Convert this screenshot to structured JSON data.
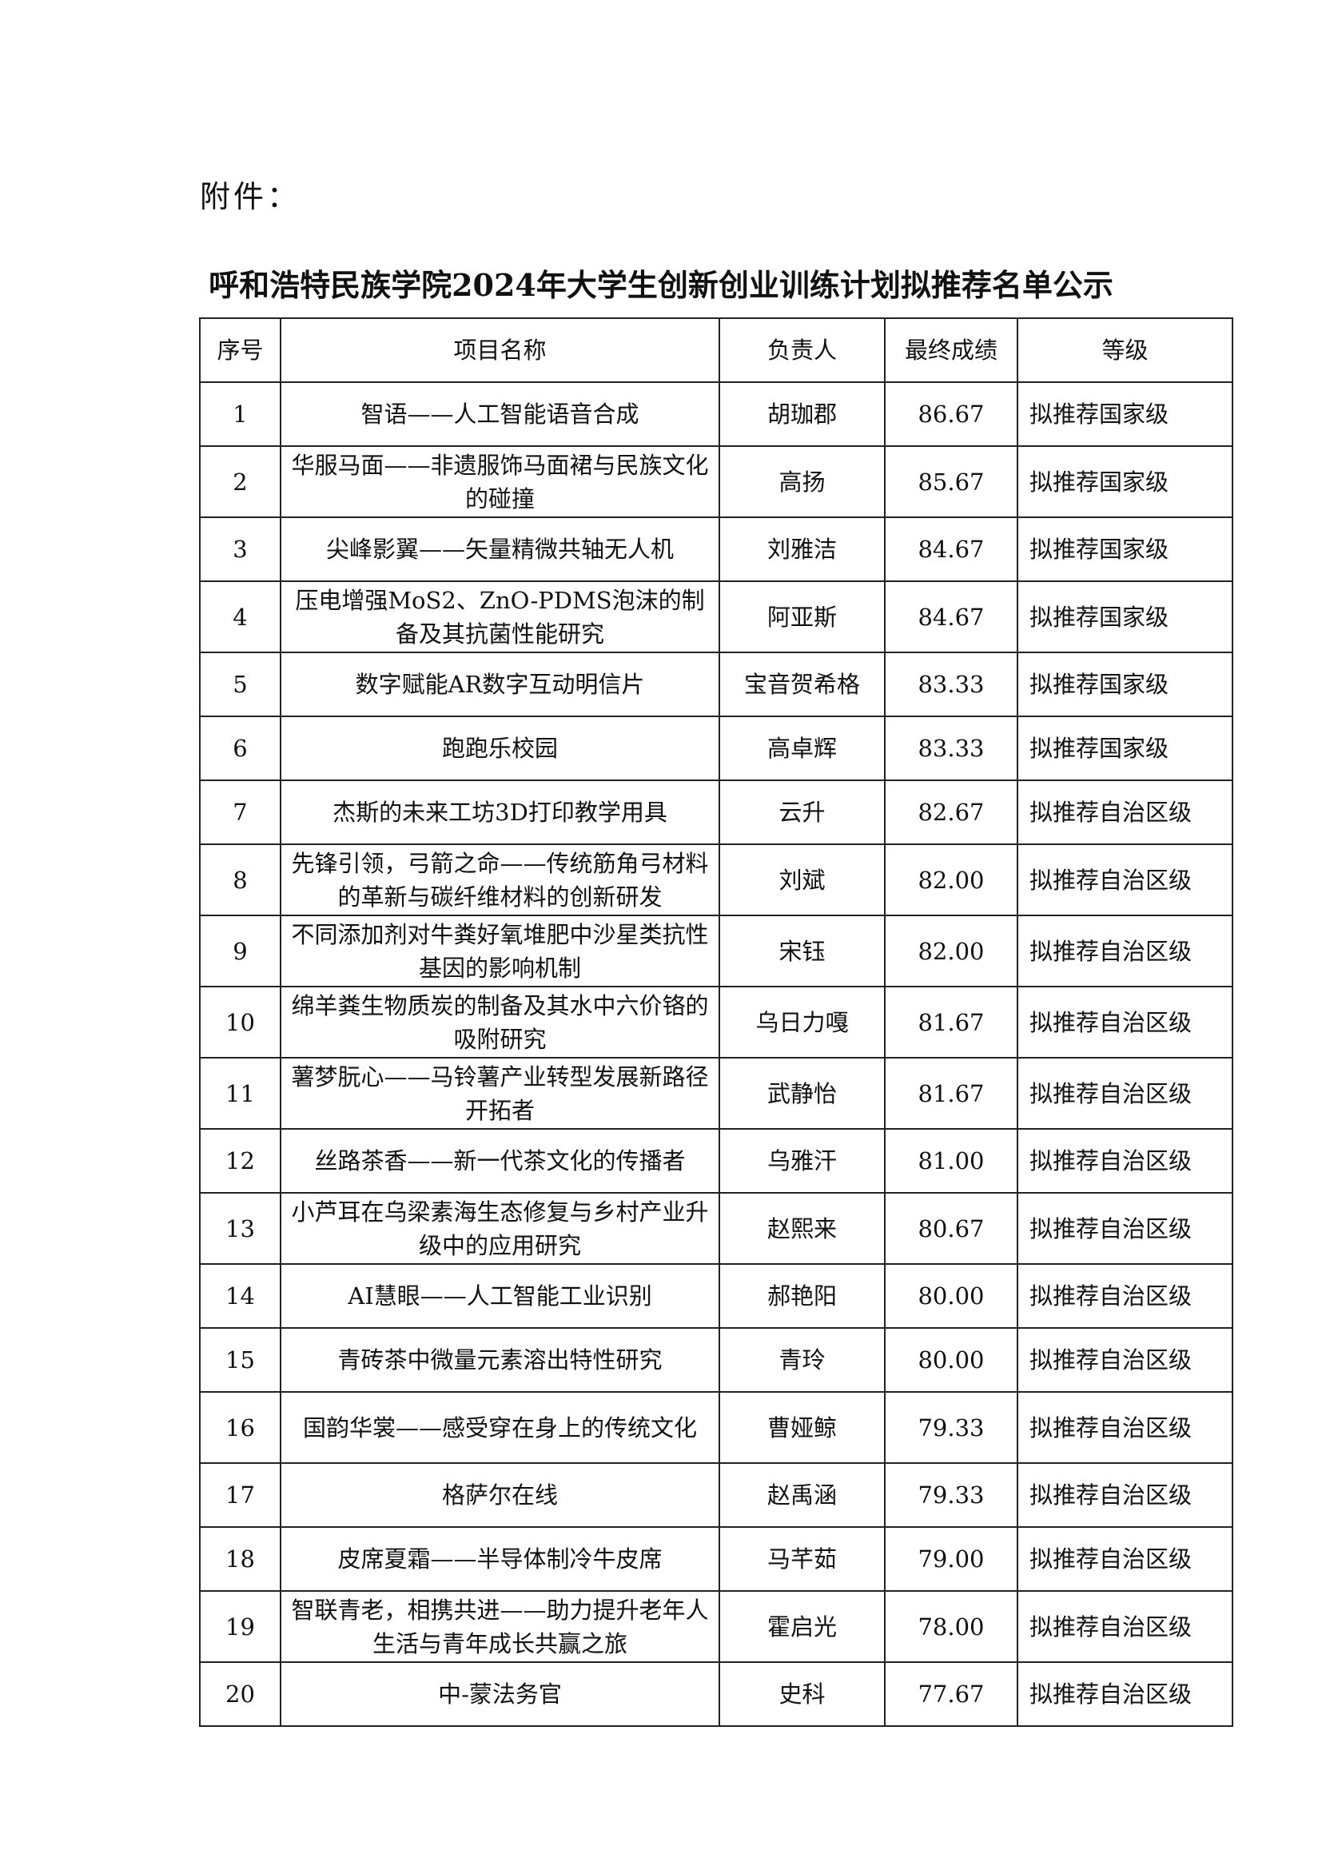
{
  "attachment_label": "附件：",
  "title": "呼和浩特民族学院2024年大学生创新创业训练计划拟推荐名单公示",
  "table": {
    "headers": [
      "序号",
      "项目名称",
      "负责人",
      "最终成绩",
      "等级"
    ],
    "rows": [
      [
        "1",
        "智语——人工智能语音合成",
        "胡珈郡",
        "86.67",
        "拟推荐国家级"
      ],
      [
        "2",
        "华服马面——非遗服饰马面裙与民族文化的碰撞",
        "高扬",
        "85.67",
        "拟推荐国家级"
      ],
      [
        "3",
        "尖峰影翼——矢量精微共轴无人机",
        "刘雅洁",
        "84.67",
        "拟推荐国家级"
      ],
      [
        "4",
        "压电增强MoS2、ZnO-PDMS泡沫的制备及其抗菌性能研究",
        "阿亚斯",
        "84.67",
        "拟推荐国家级"
      ],
      [
        "5",
        "数字赋能AR数字互动明信片",
        "宝音贺希格",
        "83.33",
        "拟推荐国家级"
      ],
      [
        "6",
        "跑跑乐校园",
        "高卓辉",
        "83.33",
        "拟推荐国家级"
      ],
      [
        "7",
        "杰斯的未来工坊3D打印教学用具",
        "云升",
        "82.67",
        "拟推荐自治区级"
      ],
      [
        "8",
        "先锋引领，弓箭之命——传统筋角弓材料的革新与碳纤维材料的创新研发",
        "刘斌",
        "82.00",
        "拟推荐自治区级"
      ],
      [
        "9",
        "不同添加剂对牛粪好氧堆肥中沙星类抗性基因的影响机制",
        "宋钰",
        "82.00",
        "拟推荐自治区级"
      ],
      [
        "10",
        "绵羊粪生物质炭的制备及其水中六价铬的吸附研究",
        "乌日力嘎",
        "81.67",
        "拟推荐自治区级"
      ],
      [
        "11",
        "薯梦朊心——马铃薯产业转型发展新路径开拓者",
        "武静怡",
        "81.67",
        "拟推荐自治区级"
      ],
      [
        "12",
        "丝路茶香——新一代茶文化的传播者",
        "乌雅汗",
        "81.00",
        "拟推荐自治区级"
      ],
      [
        "13",
        "小芦耳在乌梁素海生态修复与乡村产业升级中的应用研究",
        "赵熙来",
        "80.67",
        "拟推荐自治区级"
      ],
      [
        "14",
        "AI慧眼——人工智能工业识别",
        "郝艳阳",
        "80.00",
        "拟推荐自治区级"
      ],
      [
        "15",
        "青砖茶中微量元素溶出特性研究",
        "青玲",
        "80.00",
        "拟推荐自治区级"
      ],
      [
        "16",
        "国韵华裳——感受穿在身上的传统文化",
        "曹娅鲸",
        "79.33",
        "拟推荐自治区级"
      ],
      [
        "17",
        "格萨尔在线",
        "赵禹涵",
        "79.33",
        "拟推荐自治区级"
      ],
      [
        "18",
        "皮席夏霜——半导体制冷牛皮席",
        "马芊茹",
        "79.00",
        "拟推荐自治区级"
      ],
      [
        "19",
        "智联青老，相携共进——助力提升老年人生活与青年成长共赢之旅",
        "霍启光",
        "78.00",
        "拟推荐自治区级"
      ],
      [
        "20",
        "中-蒙法务官",
        "史科",
        "77.67",
        "拟推荐自治区级"
      ]
    ]
  }
}
